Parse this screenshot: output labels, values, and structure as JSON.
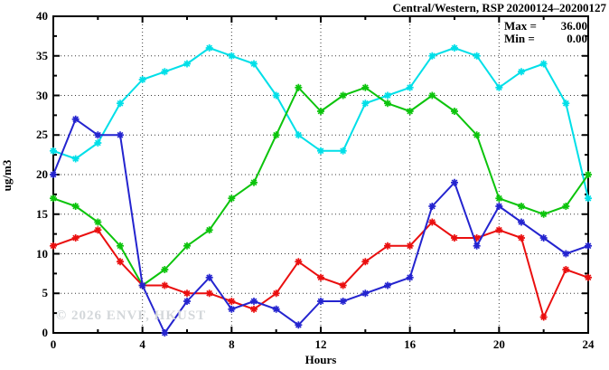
{
  "title": "Central/Western, RSP 20200124–20200127",
  "stats": {
    "max_label": "Max =",
    "max_value": "36.00",
    "min_label": "Min =",
    "min_value": "0.00"
  },
  "watermark": "© 2026 ENVF, HKUST",
  "chart_data": {
    "type": "line",
    "title": "Central/Western, RSP 20200124–20200127",
    "xlabel": "Hours",
    "ylabel": "ug/m3",
    "xlim": [
      0,
      24
    ],
    "ylim": [
      0,
      40
    ],
    "grid": true,
    "legend": "none",
    "x_tick_labels": [
      "0",
      "4",
      "8",
      "12",
      "16",
      "20",
      "24"
    ],
    "x_minor_step": 2,
    "y_tick_labels": [
      "0",
      "5",
      "10",
      "15",
      "20",
      "25",
      "30",
      "35",
      "40"
    ],
    "y_minor_step": 2.5,
    "x": [
      0,
      1,
      2,
      3,
      4,
      5,
      6,
      7,
      8,
      9,
      10,
      11,
      12,
      13,
      14,
      15,
      16,
      17,
      18,
      19,
      20,
      21,
      22,
      23,
      24
    ],
    "series": [
      {
        "name": "cyan-series",
        "color": "#00dfe8",
        "values": [
          23,
          22,
          24,
          29,
          32,
          33,
          34,
          36,
          35,
          34,
          30,
          25,
          23,
          23,
          29,
          30,
          31,
          35,
          36,
          35,
          31,
          33,
          34,
          29,
          17
        ]
      },
      {
        "name": "green-series",
        "color": "#0cc40c",
        "values": [
          17,
          16,
          14,
          11,
          6,
          8,
          11,
          13,
          17,
          19,
          25,
          31,
          28,
          30,
          31,
          29,
          28,
          30,
          28,
          25,
          17,
          16,
          15,
          16,
          20
        ]
      },
      {
        "name": "red-series",
        "color": "#ea0f0f",
        "values": [
          11,
          12,
          13,
          9,
          6,
          6,
          5,
          5,
          4,
          3,
          5,
          9,
          7,
          6,
          9,
          11,
          11,
          14,
          12,
          12,
          13,
          12,
          2,
          8,
          7
        ]
      },
      {
        "name": "blue-series",
        "color": "#2424cf",
        "values": [
          20,
          27,
          25,
          25,
          6,
          0,
          4,
          7,
          3,
          4,
          3,
          1,
          4,
          4,
          5,
          6,
          7,
          16,
          19,
          11,
          16,
          14,
          12,
          10,
          11
        ]
      }
    ],
    "annotations": {
      "max": 36.0,
      "min": 0.0
    }
  }
}
